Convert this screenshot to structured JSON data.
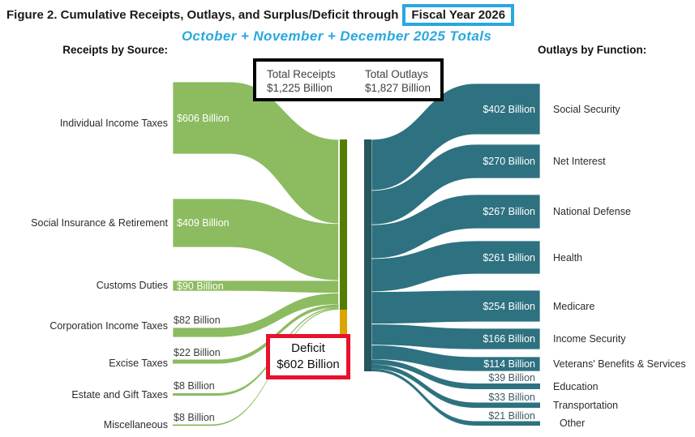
{
  "title": {
    "prefix": "Figure 2. Cumulative Receipts, Outlays, and Surplus/Deficit through",
    "highlight": "Fiscal Year 2026"
  },
  "subtitle": "October + November + December 2025 Totals",
  "left_header": "Receipts by Source:",
  "right_header": "Outlays by Function:",
  "totals_box": {
    "receipts_label": "Total Receipts",
    "receipts_value": "$1,225 Billion",
    "outlays_label": "Total Outlays",
    "outlays_value": "$1,827 Billion"
  },
  "deficit_box": {
    "label": "Deficit",
    "value": "$602 Billion"
  },
  "colors": {
    "receipts_flow_green": "#8cbb60",
    "receipts_bar_olive": "#567d00",
    "deficit_bar_gold": "#dba400",
    "outlays_flow_teal": "#2e7180",
    "outlays_bar_teal": "#26565e",
    "highlight_box_blue": "#29a8e0",
    "subtitle_blue": "#29a8e0",
    "deficit_box_red": "#e8112d",
    "totals_box_border": "#000000"
  },
  "chart_data": {
    "type": "sankey",
    "title": "Cumulative Receipts, Outlays, and Surplus/Deficit through Fiscal Year 2026",
    "period": "October + November + December 2025 Totals",
    "units": "billions of US dollars",
    "total_receipts": 1225,
    "total_outlays": 1827,
    "deficit": 602,
    "receipts": [
      {
        "label": "Individual Income Taxes",
        "value": 606,
        "value_label": "$606 Billion"
      },
      {
        "label": "Social Insurance & Retirement",
        "value": 409,
        "value_label": "$409 Billion"
      },
      {
        "label": "Customs Duties",
        "value": 90,
        "value_label": "$90 Billion"
      },
      {
        "label": "Corporation Income Taxes",
        "value": 82,
        "value_label": "$82 Billion"
      },
      {
        "label": "Excise Taxes",
        "value": 22,
        "value_label": "$22 Billion"
      },
      {
        "label": "Estate and Gift Taxes",
        "value": 8,
        "value_label": "$8 Billion"
      },
      {
        "label": "Miscellaneous",
        "value": 8,
        "value_label": "$8 Billion"
      }
    ],
    "outlays": [
      {
        "label": "Social Security",
        "value": 402,
        "value_label": "$402 Billion"
      },
      {
        "label": "Net Interest",
        "value": 270,
        "value_label": "$270 Billion"
      },
      {
        "label": "National Defense",
        "value": 267,
        "value_label": "$267 Billion"
      },
      {
        "label": "Health",
        "value": 261,
        "value_label": "$261 Billion"
      },
      {
        "label": "Medicare",
        "value": 254,
        "value_label": "$254 Billion"
      },
      {
        "label": "Income Security",
        "value": 166,
        "value_label": "$166 Billion"
      },
      {
        "label": "Veterans' Benefits & Services",
        "value": 114,
        "value_label": "$114 Billion"
      },
      {
        "label": "Education",
        "value": 39,
        "value_label": "$39 Billion"
      },
      {
        "label": "Transportation",
        "value": 33,
        "value_label": "$33 Billion"
      },
      {
        "label": "Other",
        "value": 21,
        "value_label": "$21 Billion"
      }
    ],
    "layout_hints": {
      "orientation": "left-to-right",
      "left_column": "receipts sources",
      "right_column": "outlay functions",
      "center": "receipts bar stacked above deficit bar, beside total outlays bar"
    }
  }
}
